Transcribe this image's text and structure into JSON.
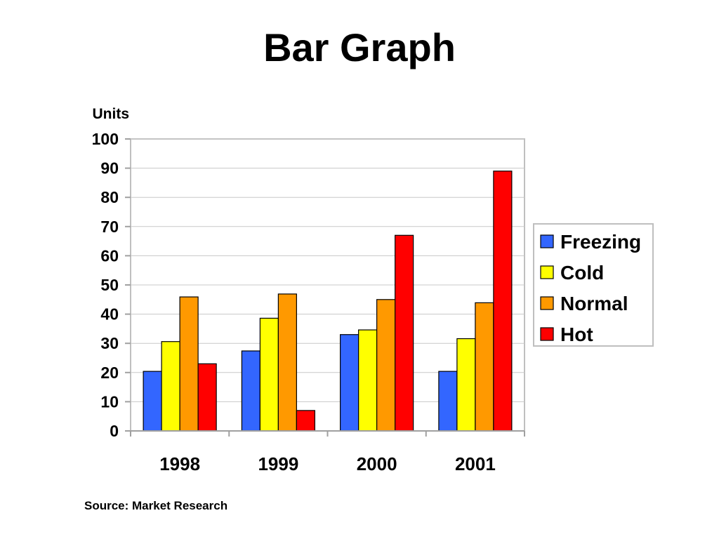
{
  "page": {
    "title": "Bar Graph",
    "source": "Source: Market Research"
  },
  "chart_data": {
    "type": "bar",
    "title": "Bar Graph",
    "ylabel": "Units",
    "xlabel": "",
    "categories": [
      "1998",
      "1999",
      "2000",
      "2001"
    ],
    "ylim": [
      0,
      100
    ],
    "yticks": [
      0,
      10,
      20,
      30,
      40,
      50,
      60,
      70,
      80,
      90,
      100
    ],
    "grid": true,
    "legend_position": "right",
    "series": [
      {
        "name": "Freezing",
        "color": "#3366ff",
        "values": [
          20.4,
          27.4,
          33,
          20.4
        ]
      },
      {
        "name": "Cold",
        "color": "#ffff00",
        "values": [
          30.6,
          38.6,
          34.6,
          31.6
        ]
      },
      {
        "name": "Normal",
        "color": "#ff9900",
        "values": [
          45.9,
          46.9,
          45,
          43.9
        ]
      },
      {
        "name": "Hot",
        "color": "#ff0000",
        "values": [
          23,
          7,
          67,
          89
        ]
      }
    ]
  }
}
